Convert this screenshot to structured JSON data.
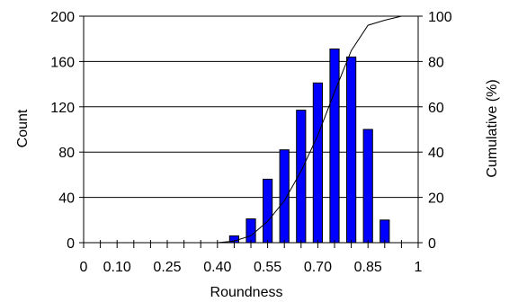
{
  "chart_data": {
    "type": "bar",
    "xlabel": "Roundness",
    "ylabel": "Count",
    "y2label": "Cumulative (%)",
    "x_tick_labels": [
      "0",
      "0.10",
      "0.25",
      "0.40",
      "0.55",
      "0.70",
      "0.85",
      "1"
    ],
    "ylim": [
      0,
      200
    ],
    "y_ticks": [
      0,
      40,
      80,
      120,
      160,
      200
    ],
    "y2lim": [
      0,
      100
    ],
    "y2_ticks": [
      0,
      20,
      40,
      60,
      80,
      100
    ],
    "grid": "horizontal",
    "series": [
      {
        "type": "bar",
        "x": [
          0.45,
          0.5,
          0.55,
          0.6,
          0.65,
          0.7,
          0.75,
          0.8,
          0.85,
          0.9
        ],
        "values": [
          6,
          21,
          56,
          82,
          117,
          141,
          171,
          164,
          100,
          20
        ],
        "color": "#0000ff"
      },
      {
        "type": "line",
        "axis": "right",
        "x": [
          0.0,
          0.4,
          0.45,
          0.5,
          0.55,
          0.6,
          0.65,
          0.7,
          0.75,
          0.8,
          0.85,
          0.9,
          0.95,
          1.0
        ],
        "values": [
          0,
          0,
          0.7,
          3.1,
          9.4,
          18.5,
          31.6,
          47.4,
          66.5,
          84.8,
          96.0,
          98.2,
          100,
          100
        ],
        "color": "#000000"
      }
    ]
  }
}
